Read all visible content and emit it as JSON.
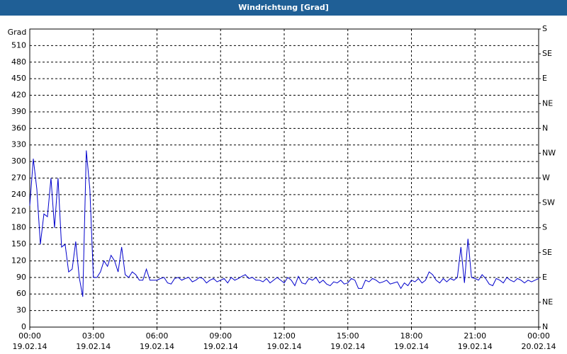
{
  "chart_data": {
    "type": "line",
    "title": "Windrichtung [Grad]",
    "y_label": "Grad",
    "x": [
      0,
      10,
      20,
      30,
      40,
      50,
      60,
      70,
      80,
      90,
      100,
      110,
      120,
      130,
      140,
      150,
      160,
      170,
      180,
      190,
      200,
      210,
      220,
      230,
      240,
      250,
      260,
      270,
      280,
      290,
      300,
      310,
      320,
      330,
      340,
      350,
      360,
      370,
      380,
      390,
      400,
      410,
      420,
      430,
      440,
      450,
      460,
      470,
      480,
      490,
      500,
      510,
      520,
      530,
      540,
      550,
      560,
      570,
      580,
      590,
      600,
      610,
      620,
      630,
      640,
      650,
      660,
      670,
      680,
      690,
      700,
      710,
      720,
      730,
      740,
      750,
      760,
      770,
      780,
      790,
      800,
      810,
      820,
      830,
      840,
      850,
      860,
      870,
      880,
      890,
      900,
      910,
      920,
      930,
      940,
      950,
      960,
      970,
      980,
      990,
      1000,
      1010,
      1020,
      1030,
      1040,
      1050,
      1060,
      1070,
      1080,
      1090,
      1100,
      1110,
      1120,
      1130,
      1140,
      1150,
      1160,
      1170,
      1180,
      1190,
      1200,
      1210,
      1220,
      1230,
      1240,
      1250,
      1260,
      1270,
      1280,
      1290,
      1300,
      1310,
      1320,
      1330,
      1340,
      1350,
      1360,
      1370,
      1380,
      1390,
      1400,
      1410,
      1420,
      1430,
      1440
    ],
    "series": [
      {
        "color": "#0000cc",
        "values": [
          220,
          305,
          250,
          150,
          205,
          200,
          270,
          180,
          270,
          145,
          150,
          100,
          105,
          155,
          90,
          55,
          320,
          250,
          90,
          90,
          100,
          120,
          110,
          130,
          120,
          100,
          145,
          95,
          90,
          100,
          95,
          85,
          85,
          105,
          85,
          85,
          85,
          88,
          90,
          80,
          78,
          88,
          90,
          85,
          88,
          90,
          82,
          85,
          90,
          88,
          80,
          85,
          88,
          82,
          85,
          88,
          80,
          90,
          85,
          88,
          92,
          95,
          88,
          90,
          85,
          85,
          82,
          88,
          80,
          85,
          90,
          85,
          80,
          90,
          85,
          75,
          92,
          80,
          78,
          88,
          85,
          90,
          80,
          85,
          78,
          75,
          82,
          80,
          85,
          78,
          80,
          88,
          85,
          70,
          70,
          85,
          82,
          88,
          85,
          80,
          82,
          85,
          78,
          80,
          82,
          70,
          80,
          75,
          85,
          82,
          88,
          80,
          85,
          100,
          95,
          85,
          80,
          88,
          82,
          88,
          85,
          90,
          145,
          80,
          160,
          90,
          88,
          85,
          95,
          88,
          78,
          75,
          88,
          85,
          80,
          90,
          85,
          82,
          88,
          85,
          80,
          85,
          82,
          85,
          88
        ]
      }
    ],
    "xlim": [
      0,
      1440
    ],
    "xticks": [
      {
        "value": 0,
        "label": "00:00"
      },
      {
        "value": 180,
        "label": "03:00"
      },
      {
        "value": 360,
        "label": "06:00"
      },
      {
        "value": 540,
        "label": "09:00"
      },
      {
        "value": 720,
        "label": "12:00"
      },
      {
        "value": 900,
        "label": "15:00"
      },
      {
        "value": 1080,
        "label": "18:00"
      },
      {
        "value": 1260,
        "label": "21:00"
      },
      {
        "value": 1440,
        "label": "00:00"
      }
    ],
    "xtick_dates": [
      "19.02.14",
      "19.02.14",
      "19.02.14",
      "19.02.14",
      "19.02.14",
      "19.02.14",
      "19.02.14",
      "19.02.14",
      "20.02.14"
    ],
    "ylim": [
      0,
      540
    ],
    "yticks": [
      0,
      30,
      60,
      90,
      120,
      150,
      180,
      210,
      240,
      270,
      300,
      330,
      360,
      390,
      420,
      450,
      480,
      510
    ],
    "y2lim": [
      0,
      540
    ],
    "y2ticks": [
      {
        "value": 0,
        "label": "N"
      },
      {
        "value": 45,
        "label": "NE"
      },
      {
        "value": 90,
        "label": "E"
      },
      {
        "value": 135,
        "label": "SE"
      },
      {
        "value": 180,
        "label": "S"
      },
      {
        "value": 225,
        "label": "SW"
      },
      {
        "value": 270,
        "label": "W"
      },
      {
        "value": 315,
        "label": "NW"
      },
      {
        "value": 360,
        "label": "N"
      },
      {
        "value": 405,
        "label": "NE"
      },
      {
        "value": 450,
        "label": "E"
      },
      {
        "value": 495,
        "label": "SE"
      },
      {
        "value": 540,
        "label": "S"
      }
    ],
    "grid": true
  }
}
